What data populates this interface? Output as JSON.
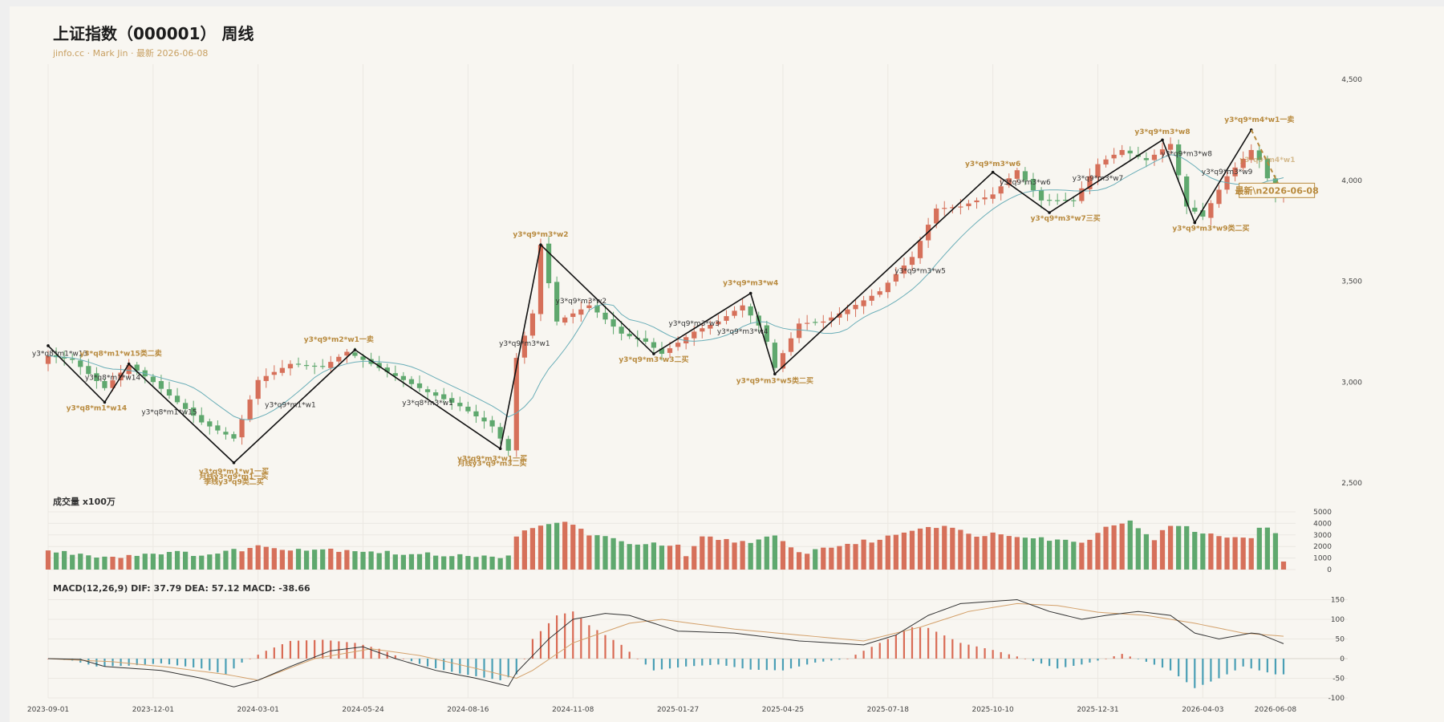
{
  "title": "上证指数（000001） 周线",
  "subtitle": "jinfo.cc · Mark Jin · 最新 2026-06-08",
  "volume_title": "成交量 x100万",
  "macd_title": "MACD(12,26,9) DIF: 37.79 DEA: 57.12 MACD: -38.66",
  "colors": {
    "up": "#d6705a",
    "down": "#5fa86e",
    "ma": "#6aaeb8",
    "dif": "#333333",
    "dea": "#d3a06a",
    "macd_up": "#d96b55",
    "macd_down": "#4a9fb5",
    "label": "#b88a3e",
    "bg": "#f8f6f1"
  },
  "chart_data": {
    "type": "candlestick",
    "price_axis": {
      "min": 2500,
      "max": 4500,
      "ticks": [
        "2,500",
        "3,000",
        "3,500",
        "4,000",
        "4,500"
      ]
    },
    "volume_axis": {
      "min": 0,
      "max": 5000,
      "ticks": [
        "0",
        "1000",
        "2000",
        "3000",
        "4000",
        "5000"
      ]
    },
    "macd_axis": {
      "min": -100,
      "max": 150,
      "ticks": [
        "-100",
        "-50",
        "0",
        "50",
        "100",
        "150"
      ]
    },
    "x_ticks": [
      {
        "label": "2023-09-01",
        "index": 0
      },
      {
        "label": "2023-12-01",
        "index": 13
      },
      {
        "label": "2024-03-01",
        "index": 26
      },
      {
        "label": "2024-05-24",
        "index": 39
      },
      {
        "label": "2024-08-16",
        "index": 52
      },
      {
        "label": "2024-11-08",
        "index": 65
      },
      {
        "label": "2025-01-27",
        "index": 78
      },
      {
        "label": "2025-04-25",
        "index": 91
      },
      {
        "label": "2025-07-18",
        "index": 104
      },
      {
        "label": "2025-10-10",
        "index": 117
      },
      {
        "label": "2025-12-31",
        "index": 130
      },
      {
        "label": "2026-04-03",
        "index": 143
      },
      {
        "label": "2026-06-08",
        "index": 152
      }
    ],
    "close_anchors": [
      [
        0,
        3130
      ],
      [
        3,
        3110
      ],
      [
        7,
        2970
      ],
      [
        10,
        3085
      ],
      [
        13,
        3000
      ],
      [
        16,
        2900
      ],
      [
        19,
        2800
      ],
      [
        23,
        2720
      ],
      [
        26,
        3010
      ],
      [
        30,
        3090
      ],
      [
        34,
        3075
      ],
      [
        37,
        3150
      ],
      [
        40,
        3090
      ],
      [
        44,
        3010
      ],
      [
        47,
        2950
      ],
      [
        51,
        2880
      ],
      [
        55,
        2780
      ],
      [
        57,
        2660
      ],
      [
        58,
        3120
      ],
      [
        60,
        3340
      ],
      [
        61,
        3680
      ],
      [
        63,
        3300
      ],
      [
        65,
        3340
      ],
      [
        67,
        3380
      ],
      [
        71,
        3240
      ],
      [
        74,
        3200
      ],
      [
        76,
        3140
      ],
      [
        80,
        3250
      ],
      [
        83,
        3300
      ],
      [
        86,
        3380
      ],
      [
        88,
        3280
      ],
      [
        89,
        3200
      ],
      [
        90,
        3070
      ],
      [
        93,
        3290
      ],
      [
        96,
        3300
      ],
      [
        99,
        3360
      ],
      [
        103,
        3450
      ],
      [
        107,
        3620
      ],
      [
        110,
        3860
      ],
      [
        113,
        3870
      ],
      [
        117,
        3930
      ],
      [
        120,
        4050
      ],
      [
        123,
        3900
      ],
      [
        127,
        3900
      ],
      [
        130,
        4080
      ],
      [
        133,
        4150
      ],
      [
        136,
        4100
      ],
      [
        139,
        4180
      ],
      [
        141,
        3870
      ],
      [
        143,
        3820
      ],
      [
        146,
        4020
      ],
      [
        149,
        4150
      ],
      [
        150,
        4100
      ],
      [
        152,
        3920
      ]
    ],
    "volume_anchors": [
      [
        0,
        1600
      ],
      [
        8,
        1100
      ],
      [
        14,
        1500
      ],
      [
        20,
        1300
      ],
      [
        26,
        2000
      ],
      [
        31,
        1800
      ],
      [
        38,
        1700
      ],
      [
        45,
        1300
      ],
      [
        52,
        1300
      ],
      [
        56,
        900
      ],
      [
        57,
        1400
      ],
      [
        58,
        3000
      ],
      [
        61,
        3700
      ],
      [
        64,
        4200
      ],
      [
        67,
        3100
      ],
      [
        71,
        2400
      ],
      [
        78,
        2000
      ],
      [
        79,
        1000
      ],
      [
        81,
        2800
      ],
      [
        86,
        2400
      ],
      [
        90,
        2800
      ],
      [
        93,
        1400
      ],
      [
        97,
        2000
      ],
      [
        103,
        2600
      ],
      [
        107,
        3500
      ],
      [
        111,
        3900
      ],
      [
        114,
        3000
      ],
      [
        117,
        3100
      ],
      [
        122,
        2900
      ],
      [
        125,
        2500
      ],
      [
        129,
        2500
      ],
      [
        131,
        3900
      ],
      [
        134,
        4100
      ],
      [
        137,
        2700
      ],
      [
        139,
        3800
      ],
      [
        141,
        3600
      ],
      [
        145,
        2800
      ],
      [
        149,
        2900
      ],
      [
        150,
        3600
      ],
      [
        152,
        3300
      ],
      [
        153,
        700
      ]
    ],
    "macd_hist_anchors": [
      [
        0,
        0
      ],
      [
        3,
        -5
      ],
      [
        6,
        -20
      ],
      [
        10,
        -18
      ],
      [
        14,
        -12
      ],
      [
        19,
        -25
      ],
      [
        22,
        -40
      ],
      [
        24,
        -10
      ],
      [
        25,
        0
      ],
      [
        27,
        20
      ],
      [
        30,
        45
      ],
      [
        34,
        48
      ],
      [
        38,
        40
      ],
      [
        41,
        25
      ],
      [
        44,
        0
      ],
      [
        47,
        -20
      ],
      [
        51,
        -38
      ],
      [
        56,
        -55
      ],
      [
        58,
        -40
      ],
      [
        59,
        0
      ],
      [
        60,
        50
      ],
      [
        63,
        110
      ],
      [
        65,
        120
      ],
      [
        67,
        85
      ],
      [
        71,
        35
      ],
      [
        73,
        0
      ],
      [
        75,
        -30
      ],
      [
        79,
        -20
      ],
      [
        83,
        -15
      ],
      [
        87,
        -28
      ],
      [
        91,
        -30
      ],
      [
        95,
        -10
      ],
      [
        99,
        0
      ],
      [
        103,
        40
      ],
      [
        107,
        80
      ],
      [
        109,
        78
      ],
      [
        113,
        40
      ],
      [
        117,
        22
      ],
      [
        121,
        0
      ],
      [
        125,
        -25
      ],
      [
        128,
        -15
      ],
      [
        131,
        0
      ],
      [
        133,
        12
      ],
      [
        136,
        -8
      ],
      [
        139,
        -30
      ],
      [
        142,
        -75
      ],
      [
        145,
        -50
      ],
      [
        148,
        -20
      ],
      [
        152,
        -40
      ]
    ],
    "dif_anchors": [
      [
        0,
        0
      ],
      [
        4,
        -2
      ],
      [
        7,
        -20
      ],
      [
        14,
        -30
      ],
      [
        19,
        -50
      ],
      [
        23,
        -72
      ],
      [
        26,
        -55
      ],
      [
        30,
        -20
      ],
      [
        35,
        20
      ],
      [
        39,
        30
      ],
      [
        43,
        0
      ],
      [
        48,
        -30
      ],
      [
        53,
        -50
      ],
      [
        57,
        -70
      ],
      [
        58,
        -35
      ],
      [
        62,
        50
      ],
      [
        65,
        100
      ],
      [
        69,
        115
      ],
      [
        72,
        110
      ],
      [
        78,
        70
      ],
      [
        85,
        65
      ],
      [
        93,
        45
      ],
      [
        101,
        35
      ],
      [
        105,
        60
      ],
      [
        109,
        110
      ],
      [
        113,
        140
      ],
      [
        120,
        150
      ],
      [
        124,
        120
      ],
      [
        128,
        100
      ],
      [
        131,
        110
      ],
      [
        135,
        120
      ],
      [
        139,
        110
      ],
      [
        142,
        65
      ],
      [
        145,
        50
      ],
      [
        149,
        65
      ],
      [
        150,
        63
      ],
      [
        153,
        38
      ]
    ],
    "dea_anchors": [
      [
        0,
        0
      ],
      [
        8,
        -8
      ],
      [
        15,
        -22
      ],
      [
        22,
        -40
      ],
      [
        26,
        -55
      ],
      [
        33,
        0
      ],
      [
        40,
        25
      ],
      [
        46,
        8
      ],
      [
        53,
        -25
      ],
      [
        58,
        -50
      ],
      [
        60,
        -30
      ],
      [
        65,
        40
      ],
      [
        72,
        90
      ],
      [
        76,
        100
      ],
      [
        85,
        75
      ],
      [
        93,
        60
      ],
      [
        101,
        45
      ],
      [
        108,
        80
      ],
      [
        114,
        120
      ],
      [
        120,
        140
      ],
      [
        125,
        135
      ],
      [
        130,
        118
      ],
      [
        136,
        110
      ],
      [
        142,
        90
      ],
      [
        148,
        65
      ],
      [
        153,
        57
      ]
    ],
    "zigzag": [
      [
        0,
        3180
      ],
      [
        7,
        2900
      ],
      [
        10,
        3090
      ],
      [
        23,
        2600
      ],
      [
        38,
        3160
      ],
      [
        56,
        2670
      ],
      [
        61,
        3680
      ],
      [
        75,
        3140
      ],
      [
        87,
        3440
      ],
      [
        90,
        3040
      ],
      [
        117,
        4040
      ],
      [
        124,
        3840
      ],
      [
        138,
        4200
      ],
      [
        142,
        3790
      ],
      [
        149,
        4250
      ]
    ],
    "projection": [
      [
        149,
        4250
      ],
      [
        153,
        3930
      ]
    ],
    "latest_box": "最新\\n2026-06-08",
    "labels": [
      {
        "i": -2,
        "p": 3130,
        "text": "y3*q8*m1*w13",
        "color": "black",
        "anchor": "start"
      },
      {
        "i": 9,
        "p": 3130,
        "text": "y3*q8*m1*w15类二卖",
        "color": "gold",
        "anchor": "middle"
      },
      {
        "i": 8,
        "p": 3010,
        "text": "y3*q8*m1*w14",
        "color": "black",
        "anchor": "middle"
      },
      {
        "i": 6,
        "p": 2860,
        "text": "y3*q8*m1*w14",
        "color": "gold",
        "anchor": "middle"
      },
      {
        "i": 15,
        "p": 2840,
        "text": "y3*q8*m1*w15",
        "color": "black",
        "anchor": "middle"
      },
      {
        "i": 23,
        "p": 2545,
        "text": "y3*q9*m1*w1一买",
        "color": "gold",
        "anchor": "middle"
      },
      {
        "i": 23,
        "p": 2520,
        "text": "月线y3*q9*m1一买",
        "color": "gold",
        "anchor": "middle"
      },
      {
        "i": 23,
        "p": 2495,
        "text": "季线y3*q9类二买",
        "color": "gold",
        "anchor": "middle"
      },
      {
        "i": 30,
        "p": 2875,
        "text": "y3*q9*m1*w1",
        "color": "black",
        "anchor": "middle"
      },
      {
        "i": 36,
        "p": 3200,
        "text": "y3*q9*m2*w1一卖",
        "color": "gold",
        "anchor": "middle"
      },
      {
        "i": 47,
        "p": 2885,
        "text": "y3*q8*m3*w1",
        "color": "black",
        "anchor": "middle"
      },
      {
        "i": 55,
        "p": 2610,
        "text": "y3*q9*m3*w1一买",
        "color": "gold",
        "anchor": "middle"
      },
      {
        "i": 55,
        "p": 2585,
        "text": "月线y3*q9*m3二买",
        "color": "gold",
        "anchor": "middle"
      },
      {
        "i": 59,
        "p": 3180,
        "text": "y3*q9*m3*w1",
        "color": "black",
        "anchor": "middle"
      },
      {
        "i": 61,
        "p": 3720,
        "text": "y3*q9*m3*w2",
        "color": "gold",
        "anchor": "middle"
      },
      {
        "i": 66,
        "p": 3390,
        "text": "y3*q9*m3*w2",
        "color": "black",
        "anchor": "middle"
      },
      {
        "i": 75,
        "p": 3100,
        "text": "y3*q9*m3*w3二买",
        "color": "gold",
        "anchor": "middle"
      },
      {
        "i": 80,
        "p": 3280,
        "text": "y3*q9*m3*w3",
        "color": "black",
        "anchor": "middle"
      },
      {
        "i": 87,
        "p": 3480,
        "text": "y3*q9*m3*w4",
        "color": "gold",
        "anchor": "middle"
      },
      {
        "i": 86,
        "p": 3240,
        "text": "y3*q9*m3*w4",
        "color": "black",
        "anchor": "middle"
      },
      {
        "i": 90,
        "p": 2995,
        "text": "y3*q9*m3*w5类二买",
        "color": "gold",
        "anchor": "middle"
      },
      {
        "i": 108,
        "p": 3540,
        "text": "y3*q9*m3*w5",
        "color": "black",
        "anchor": "middle"
      },
      {
        "i": 117,
        "p": 4070,
        "text": "y3*q9*m3*w6",
        "color": "gold",
        "anchor": "middle"
      },
      {
        "i": 121,
        "p": 3980,
        "text": "y3*q9*m3*w6",
        "color": "black",
        "anchor": "middle"
      },
      {
        "i": 126,
        "p": 3800,
        "text": "y3*q9*m3*w7三买",
        "color": "gold",
        "anchor": "middle"
      },
      {
        "i": 130,
        "p": 4000,
        "text": "y3*q9*m3*w7",
        "color": "black",
        "anchor": "middle"
      },
      {
        "i": 138,
        "p": 4230,
        "text": "y3*q9*m3*w8",
        "color": "gold",
        "anchor": "middle"
      },
      {
        "i": 141,
        "p": 4120,
        "text": "y3*q9*m3*w8",
        "color": "black",
        "anchor": "middle"
      },
      {
        "i": 144,
        "p": 3750,
        "text": "y3*q9*m3*w9类二买",
        "color": "gold",
        "anchor": "middle"
      },
      {
        "i": 146,
        "p": 4030,
        "text": "y3*q9*m3*w9",
        "color": "black",
        "anchor": "middle"
      },
      {
        "i": 150,
        "p": 4290,
        "text": "y3*q9*m4*w1一卖",
        "color": "gold",
        "anchor": "middle"
      },
      {
        "i": 151,
        "p": 4090,
        "text": "y3*q9*m4*w1",
        "color": "goldfade",
        "anchor": "middle"
      }
    ]
  }
}
